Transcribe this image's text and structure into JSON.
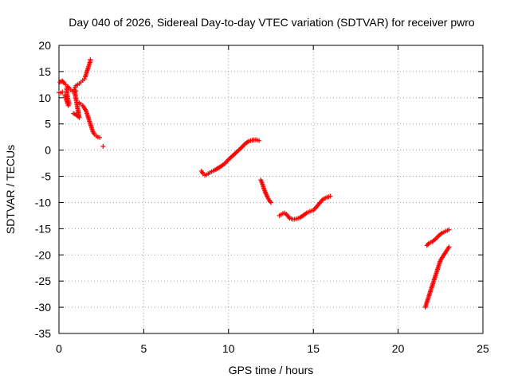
{
  "chart_data": {
    "type": "scatter",
    "title": "Day 040 of 2026, Sidereal Day-to-day VTEC variation (SDTVAR) for receiver pwro",
    "xlabel": "GPS time / hours",
    "ylabel": "SDTVAR / TECUs",
    "xlim": [
      0,
      25
    ],
    "ylim": [
      -35,
      20
    ],
    "xticks": [
      "0",
      "5",
      "10",
      "15",
      "20",
      "25"
    ],
    "yticks": [
      "20",
      "15",
      "10",
      "5",
      "0",
      "-5",
      "-10",
      "-15",
      "-20",
      "-25",
      "-30",
      "-35"
    ],
    "grid": true,
    "marker": "plus",
    "colors": {
      "points": "#ff0000"
    },
    "segments": [
      [
        [
          0.05,
          13.0
        ],
        [
          0.2,
          13.2
        ],
        [
          0.3,
          12.8
        ],
        [
          0.4,
          12.5
        ],
        [
          0.5,
          12.2
        ],
        [
          0.6,
          11.8
        ],
        [
          0.7,
          11.5
        ],
        [
          0.8,
          11.2
        ]
      ],
      [
        [
          0.0,
          11.0
        ],
        [
          0.1,
          10.9
        ],
        [
          0.2,
          11.1
        ]
      ],
      [
        [
          0.35,
          10.5
        ],
        [
          0.4,
          10.0
        ],
        [
          0.45,
          9.5
        ],
        [
          0.5,
          9.0
        ],
        [
          0.55,
          8.5
        ],
        [
          0.6,
          8.8
        ],
        [
          0.5,
          10.2
        ],
        [
          0.45,
          11.8
        ]
      ],
      [
        [
          0.85,
          7.0
        ],
        [
          1.0,
          6.8
        ],
        [
          1.2,
          6.2
        ],
        [
          0.9,
          11.6
        ],
        [
          1.0,
          11.3
        ]
      ],
      [
        [
          0.95,
          12.0
        ],
        [
          1.0,
          12.3
        ],
        [
          1.1,
          12.5
        ],
        [
          1.2,
          12.7
        ],
        [
          1.3,
          13.0
        ],
        [
          1.4,
          13.3
        ],
        [
          1.5,
          13.6
        ],
        [
          1.55,
          14.0
        ],
        [
          1.6,
          14.5
        ],
        [
          1.65,
          15.0
        ],
        [
          1.7,
          15.5
        ],
        [
          1.75,
          16.0
        ],
        [
          1.8,
          16.5
        ],
        [
          1.85,
          17.0
        ],
        [
          1.85,
          17.3
        ]
      ],
      [
        [
          1.2,
          9.0
        ],
        [
          1.3,
          8.8
        ],
        [
          1.4,
          8.5
        ],
        [
          1.5,
          8.0
        ],
        [
          1.6,
          7.5
        ],
        [
          1.65,
          7.0
        ],
        [
          1.7,
          6.5
        ],
        [
          1.75,
          6.0
        ],
        [
          1.8,
          5.5
        ],
        [
          1.85,
          5.0
        ],
        [
          1.9,
          4.5
        ],
        [
          1.95,
          4.0
        ],
        [
          2.0,
          3.5
        ],
        [
          2.1,
          3.0
        ],
        [
          2.2,
          2.7
        ],
        [
          2.3,
          2.5
        ],
        [
          2.4,
          2.4
        ]
      ],
      [
        [
          2.6,
          0.7
        ]
      ],
      [
        [
          8.4,
          -4.0
        ],
        [
          8.5,
          -4.5
        ],
        [
          8.6,
          -4.8
        ],
        [
          8.7,
          -4.7
        ],
        [
          8.8,
          -4.5
        ],
        [
          8.9,
          -4.3
        ],
        [
          9.0,
          -4.1
        ],
        [
          9.2,
          -3.8
        ],
        [
          9.4,
          -3.4
        ],
        [
          9.6,
          -3.0
        ],
        [
          9.8,
          -2.5
        ],
        [
          10.0,
          -1.8
        ],
        [
          10.2,
          -1.2
        ],
        [
          10.4,
          -0.6
        ],
        [
          10.6,
          0.0
        ],
        [
          10.8,
          0.6
        ],
        [
          11.0,
          1.3
        ],
        [
          11.2,
          1.7
        ],
        [
          11.4,
          1.9
        ],
        [
          11.6,
          2.0
        ],
        [
          11.7,
          1.9
        ],
        [
          11.8,
          1.8
        ]
      ],
      [
        [
          11.9,
          -5.7
        ],
        [
          12.0,
          -6.5
        ],
        [
          12.1,
          -7.5
        ],
        [
          12.2,
          -8.3
        ],
        [
          12.3,
          -9.0
        ],
        [
          12.4,
          -9.6
        ],
        [
          12.5,
          -10.0
        ]
      ],
      [
        [
          13.0,
          -12.5
        ],
        [
          13.1,
          -12.3
        ],
        [
          13.2,
          -12.1
        ],
        [
          13.3,
          -12.0
        ],
        [
          13.4,
          -12.2
        ],
        [
          13.5,
          -12.6
        ],
        [
          13.6,
          -13.0
        ],
        [
          13.7,
          -13.1
        ],
        [
          13.8,
          -13.2
        ],
        [
          13.9,
          -13.2
        ],
        [
          14.0,
          -13.1
        ],
        [
          14.2,
          -12.9
        ],
        [
          14.4,
          -12.5
        ],
        [
          14.6,
          -12.0
        ],
        [
          14.8,
          -11.7
        ],
        [
          15.0,
          -11.5
        ],
        [
          15.2,
          -10.8
        ],
        [
          15.4,
          -10.0
        ],
        [
          15.6,
          -9.3
        ],
        [
          15.8,
          -9.0
        ],
        [
          16.0,
          -8.8
        ]
      ],
      [
        [
          21.6,
          -30.0
        ],
        [
          21.7,
          -29.0
        ],
        [
          21.8,
          -28.0
        ],
        [
          21.9,
          -27.0
        ],
        [
          22.0,
          -26.0
        ],
        [
          22.1,
          -25.0
        ],
        [
          22.2,
          -24.0
        ],
        [
          22.3,
          -23.0
        ],
        [
          22.4,
          -22.0
        ],
        [
          22.5,
          -21.0
        ],
        [
          22.6,
          -20.5
        ],
        [
          22.7,
          -20.0
        ],
        [
          22.8,
          -19.5
        ],
        [
          22.9,
          -19.0
        ],
        [
          23.0,
          -18.5
        ]
      ],
      [
        [
          21.7,
          -18.2
        ],
        [
          21.8,
          -17.8
        ],
        [
          22.0,
          -17.5
        ],
        [
          22.2,
          -17.0
        ],
        [
          22.4,
          -16.3
        ],
        [
          22.6,
          -15.8
        ],
        [
          22.8,
          -15.5
        ],
        [
          23.0,
          -15.2
        ]
      ]
    ]
  }
}
